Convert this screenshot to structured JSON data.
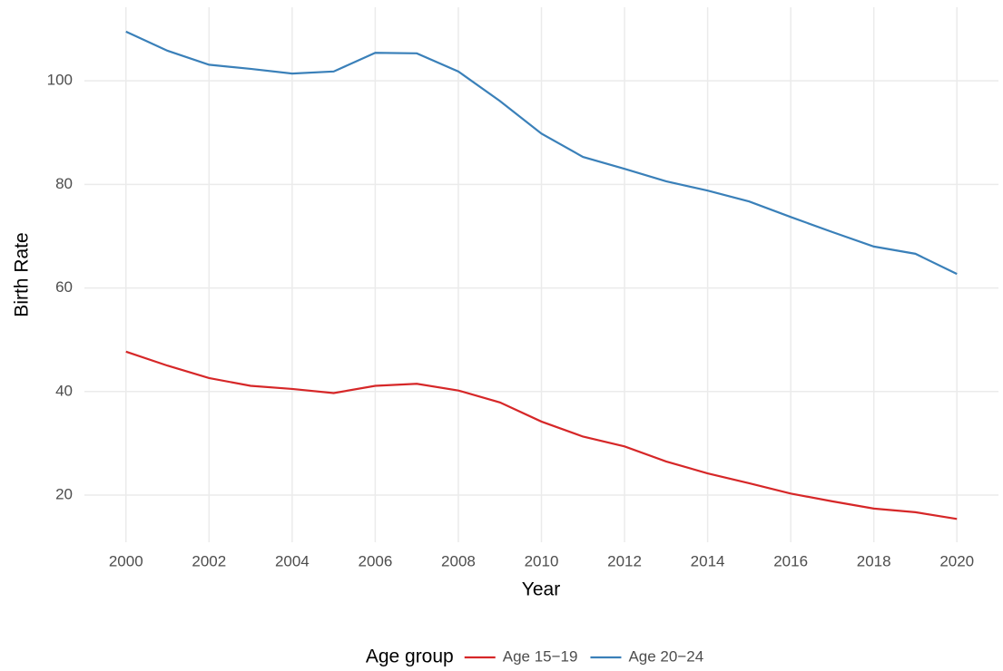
{
  "chart_data": {
    "type": "line",
    "x_label": "Year",
    "y_label": "Birth Rate",
    "x": [
      2000,
      2001,
      2002,
      2003,
      2004,
      2005,
      2006,
      2007,
      2008,
      2009,
      2010,
      2011,
      2012,
      2013,
      2014,
      2015,
      2016,
      2017,
      2018,
      2019,
      2020
    ],
    "series": [
      {
        "name": "Age 15−19",
        "color": "#d62728",
        "values": [
          47.7,
          45.0,
          42.6,
          41.1,
          40.5,
          39.7,
          41.1,
          41.5,
          40.2,
          37.9,
          34.2,
          31.3,
          29.4,
          26.5,
          24.2,
          22.3,
          20.3,
          18.8,
          17.4,
          16.7,
          15.4
        ]
      },
      {
        "name": "Age 20−24",
        "color": "#3a80b9",
        "values": [
          109.5,
          105.8,
          103.1,
          102.3,
          101.4,
          101.8,
          105.4,
          105.3,
          101.8,
          96.1,
          89.8,
          85.3,
          83.0,
          80.6,
          78.8,
          76.7,
          73.7,
          70.8,
          68.0,
          66.6,
          62.7
        ]
      }
    ],
    "xlim": [
      1999,
      2021
    ],
    "xticks": [
      2000,
      2002,
      2004,
      2006,
      2008,
      2010,
      2012,
      2014,
      2016,
      2018,
      2020
    ],
    "ylim": [
      10.9,
      114.2
    ],
    "yticks": [
      20,
      40,
      60,
      80,
      100
    ],
    "grid": true,
    "legend_title": "Age group",
    "legend_position": "bottom"
  }
}
